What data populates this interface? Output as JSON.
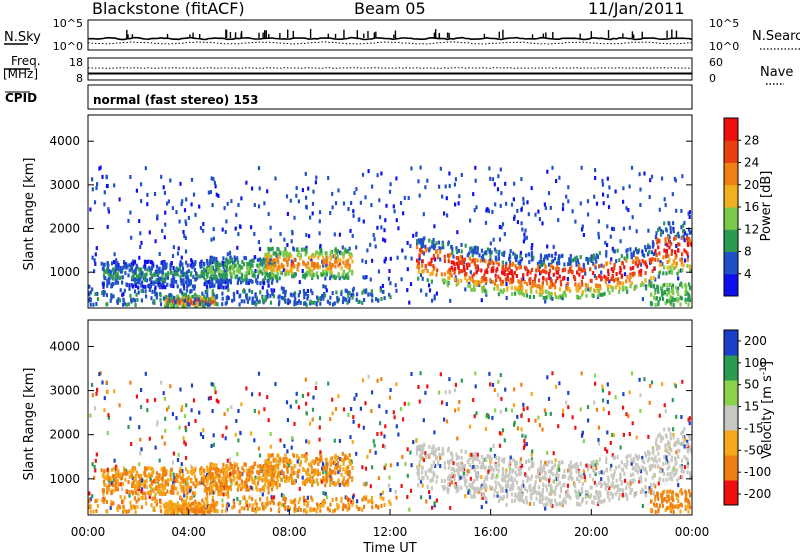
{
  "header": {
    "station": "Blackstone (fitACF)",
    "beam": "Beam 05",
    "date": "11/Jan/2011"
  },
  "colors": {
    "power": [
      "#1010ee",
      "#2050c8",
      "#2c9a50",
      "#7ac94a",
      "#f0b020",
      "#f07f14",
      "#e84010",
      "#ee1010"
    ],
    "velocity": [
      "#ee1010",
      "#ef7f10",
      "#f5a81c",
      "#c8c8c0",
      "#8ad24a",
      "#2b9a52",
      "#1a3fc8"
    ],
    "line": "#000000"
  },
  "chart_data": [
    {
      "type": "line",
      "panel": "noise",
      "left_label": "N.Sky",
      "right_label": "N.Search",
      "left_ticks": [
        "10^5",
        "10^0"
      ],
      "right_ticks": [
        "10^5",
        "10^0"
      ],
      "y_scale": "log",
      "ylim": [
        1,
        100000
      ],
      "series": [
        {
          "name": "N.Sky",
          "style": "solid"
        },
        {
          "name": "N.Search",
          "style": "dotted"
        }
      ]
    },
    {
      "type": "line",
      "panel": "frequency",
      "left_label_top": "Freq.",
      "left_label_bottom": "[MHz]",
      "right_label": "Nave",
      "left_ticks": [
        "18",
        "8"
      ],
      "right_ticks": [
        "60",
        "0"
      ],
      "ylim": [
        8,
        18
      ],
      "ylim_right": [
        0,
        60
      ],
      "series": [
        {
          "name": "Freq.",
          "style": "solid"
        },
        {
          "name": "Nave",
          "style": "dotted"
        }
      ]
    },
    {
      "type": "table",
      "panel": "cpid",
      "label": "CPID",
      "text": "normal (fast stereo) 153"
    },
    {
      "type": "heatmap",
      "panel": "power",
      "ylabel": "Slant Range [km]",
      "y_ticks": [
        "1000",
        "2000",
        "3000",
        "4000"
      ],
      "ylim": [
        180,
        4600
      ],
      "xlim": [
        "00:00",
        "24:00"
      ],
      "colorbar": {
        "label": "Power [dB]",
        "ticks": [
          "4",
          "8",
          "12",
          "16",
          "20",
          "24",
          "28"
        ],
        "range": [
          0,
          32
        ]
      },
      "features": [
        {
          "start": "00:30",
          "end": "05:30",
          "range_km": [
            600,
            1200
          ],
          "dominant_db": 8
        },
        {
          "start": "04:40",
          "end": "07:30",
          "range_km": [
            700,
            1300
          ],
          "dominant_db": 12
        },
        {
          "start": "07:00",
          "end": "10:30",
          "range_km": [
            800,
            1500
          ],
          "dominant_db": 20
        },
        {
          "start": "03:00",
          "end": "05:00",
          "range_km": [
            180,
            400
          ],
          "dominant_db": 24
        },
        {
          "start": "13:00",
          "end": "24:00",
          "range_km": [
            700,
            2100
          ],
          "dominant_db": 26
        }
      ]
    },
    {
      "type": "heatmap",
      "panel": "velocity",
      "xlabel": "Time UT",
      "ylabel": "Slant Range [km]",
      "y_ticks": [
        "1000",
        "2000",
        "3000",
        "4000"
      ],
      "x_ticks": [
        "00:00",
        "04:00",
        "08:00",
        "12:00",
        "16:00",
        "20:00",
        "00:00"
      ],
      "ylim": [
        180,
        4600
      ],
      "xlim": [
        "00:00",
        "24:00"
      ],
      "colorbar": {
        "label_main": "Velocity",
        "label_unit": "[m s",
        "label_exp": "-1",
        "label_close": "]",
        "ticks": [
          "200",
          "100",
          "50",
          "15",
          "-15",
          "-50",
          "-100",
          "-200"
        ]
      },
      "features": [
        {
          "start": "00:00",
          "end": "11:30",
          "range_km": [
            200,
            1500
          ],
          "dominant_velocity": -50
        },
        {
          "start": "13:00",
          "end": "24:00",
          "range_km": [
            700,
            2100
          ],
          "dominant_velocity": 0
        }
      ]
    }
  ]
}
